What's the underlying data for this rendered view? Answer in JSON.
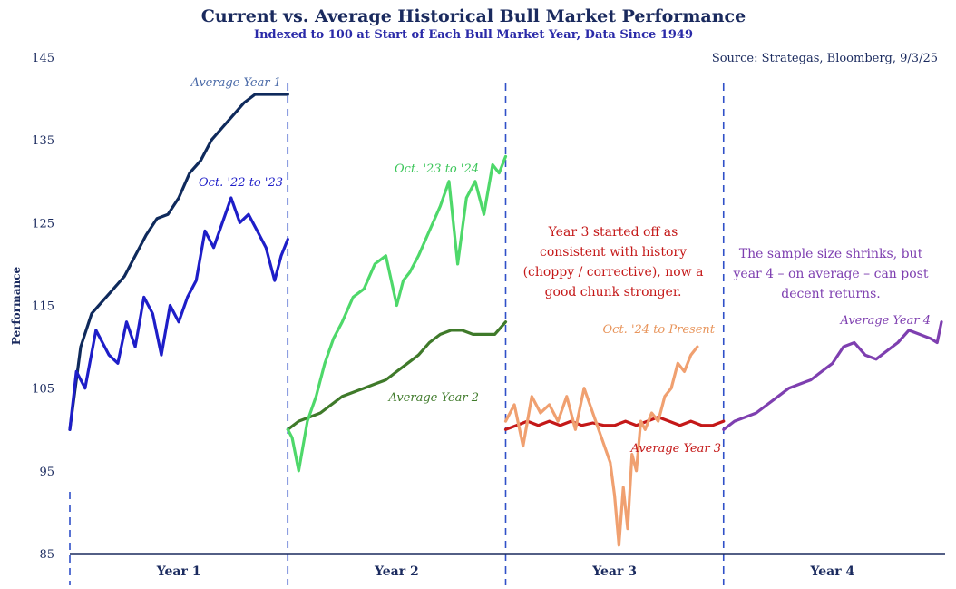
{
  "chart_data": {
    "type": "line",
    "title": "Current vs. Average Historical Bull Market Performance",
    "subtitle": "Indexed to 100 at Start of Each Bull Market Year, Data Since 1949",
    "source": "Source: Strategas, Bloomberg, 9/3/25",
    "ylabel": "Performance",
    "ylim": [
      85,
      145
    ],
    "yticks": [
      145,
      135,
      125,
      115,
      105,
      95,
      85
    ],
    "xlim": [
      0,
      4
    ],
    "years": [
      "Year 1",
      "Year 2",
      "Year 3",
      "Year 4"
    ],
    "series": [
      {
        "name": "Average Year 1",
        "color": "#0f2a5c",
        "x": [
          0,
          0.05,
          0.1,
          0.15,
          0.2,
          0.25,
          0.3,
          0.35,
          0.4,
          0.45,
          0.5,
          0.55,
          0.6,
          0.65,
          0.7,
          0.75,
          0.8,
          0.85,
          0.9,
          0.95,
          1.0
        ],
        "y": [
          100,
          110,
          114,
          115.5,
          117,
          118.5,
          121,
          123.5,
          125.5,
          126,
          128,
          131,
          132.5,
          135,
          136.5,
          138,
          139.5,
          140.5,
          140.5,
          140.5,
          140.5
        ]
      },
      {
        "name": "Oct. '22 to '23",
        "color": "#1e1ec8",
        "x": [
          0,
          0.03,
          0.07,
          0.12,
          0.18,
          0.22,
          0.26,
          0.3,
          0.34,
          0.38,
          0.42,
          0.46,
          0.5,
          0.54,
          0.58,
          0.62,
          0.66,
          0.7,
          0.74,
          0.78,
          0.82,
          0.86,
          0.9,
          0.94,
          0.97,
          1.0
        ],
        "y": [
          100,
          107,
          105,
          112,
          109,
          108,
          113,
          110,
          116,
          114,
          109,
          115,
          113,
          116,
          118,
          124,
          122,
          125,
          128,
          125,
          126,
          124,
          122,
          118,
          121,
          123
        ]
      },
      {
        "name": "Average Year 2",
        "color": "#3f7a2a",
        "x": [
          1.0,
          1.05,
          1.1,
          1.15,
          1.2,
          1.25,
          1.3,
          1.35,
          1.4,
          1.45,
          1.5,
          1.55,
          1.6,
          1.65,
          1.7,
          1.75,
          1.8,
          1.85,
          1.9,
          1.95,
          2.0
        ],
        "y": [
          100,
          101,
          101.5,
          102,
          103,
          104,
          104.5,
          105,
          105.5,
          106,
          107,
          108,
          109,
          110.5,
          111.5,
          112,
          112,
          111.5,
          111.5,
          111.5,
          113
        ]
      },
      {
        "name": "Oct. '23 to '24",
        "color": "#4ed86a",
        "x": [
          1.0,
          1.02,
          1.05,
          1.09,
          1.13,
          1.17,
          1.21,
          1.25,
          1.3,
          1.35,
          1.4,
          1.45,
          1.5,
          1.53,
          1.56,
          1.6,
          1.65,
          1.7,
          1.74,
          1.78,
          1.82,
          1.86,
          1.9,
          1.94,
          1.97,
          2.0
        ],
        "y": [
          100,
          99,
          95,
          101,
          104,
          108,
          111,
          113,
          116,
          117,
          120,
          121,
          115,
          118,
          119,
          121,
          124,
          127,
          130,
          120,
          128,
          130,
          126,
          132,
          131,
          133
        ]
      },
      {
        "name": "Average Year 3",
        "color": "#c41818",
        "x": [
          2.0,
          2.05,
          2.1,
          2.15,
          2.2,
          2.25,
          2.3,
          2.35,
          2.4,
          2.45,
          2.5,
          2.55,
          2.6,
          2.65,
          2.7,
          2.75,
          2.8,
          2.85,
          2.9,
          2.95,
          3.0
        ],
        "y": [
          100,
          100.5,
          101,
          100.5,
          101,
          100.5,
          101,
          100.5,
          100.8,
          100.5,
          100.5,
          101,
          100.5,
          101,
          101.5,
          101,
          100.5,
          101,
          100.5,
          100.5,
          101
        ]
      },
      {
        "name": "Oct. '24 to Present",
        "color": "#f0a070",
        "x": [
          2.0,
          2.04,
          2.08,
          2.12,
          2.16,
          2.2,
          2.24,
          2.28,
          2.32,
          2.36,
          2.4,
          2.44,
          2.48,
          2.5,
          2.52,
          2.54,
          2.56,
          2.58,
          2.6,
          2.62,
          2.64,
          2.67,
          2.7,
          2.73,
          2.76,
          2.79,
          2.82,
          2.85,
          2.88
        ],
        "y": [
          101,
          103,
          98,
          104,
          102,
          103,
          101,
          104,
          100,
          105,
          102,
          99,
          96,
          92,
          86,
          93,
          88,
          97,
          95,
          101,
          100,
          102,
          101,
          104,
          105,
          108,
          107,
          109,
          110
        ]
      },
      {
        "name": "Average Year 4",
        "color": "#7e3fb0",
        "x": [
          3.0,
          3.05,
          3.1,
          3.15,
          3.2,
          3.25,
          3.3,
          3.35,
          3.4,
          3.45,
          3.5,
          3.55,
          3.6,
          3.65,
          3.7,
          3.75,
          3.8,
          3.85,
          3.9,
          3.95,
          3.98,
          4.0
        ],
        "y": [
          100,
          101,
          101.5,
          102,
          103,
          104,
          105,
          105.5,
          106,
          107,
          108,
          110,
          110.5,
          109,
          108.5,
          109.5,
          110.5,
          112,
          111.5,
          111,
          110.5,
          113
        ]
      }
    ],
    "series_labels": [
      "Average Year 1",
      "Oct. '22 to '23",
      "Oct. '23 to '24",
      "Average Year 2",
      "Oct. '24 to Present",
      "Average Year 3",
      "Average Year 4"
    ],
    "annotations": [
      {
        "text_lines": [
          "Year 3 started off as",
          "consistent with history",
          "(choppy / corrective), now a",
          "good chunk stronger."
        ],
        "color": "#c41818"
      },
      {
        "text_lines": [
          "The sample size shrinks, but",
          "year 4 – on average – can post",
          "decent returns."
        ],
        "color": "#7e3fb0"
      }
    ],
    "grid": false,
    "legend": "none"
  }
}
